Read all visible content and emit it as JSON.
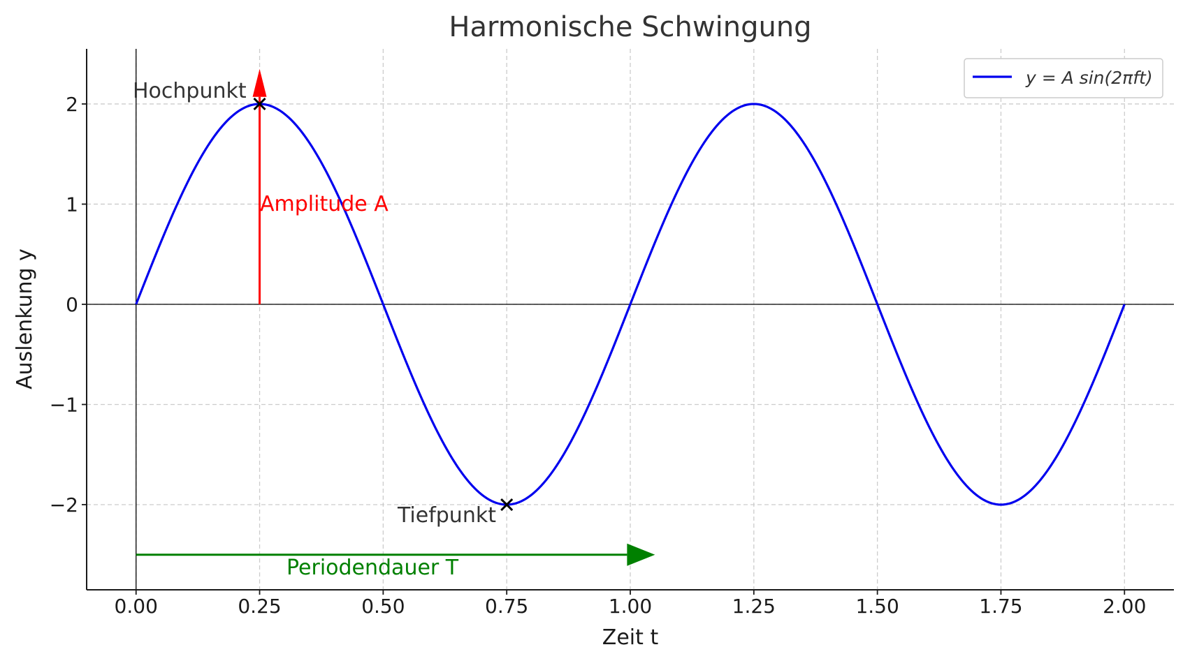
{
  "chart_data": {
    "type": "line",
    "title": "Harmonische Schwingung",
    "xlabel": "Zeit t",
    "ylabel": "Auslenkung y",
    "xlim": [
      -0.1,
      2.1
    ],
    "ylim": [
      -2.85,
      2.55
    ],
    "xticks": [
      0.0,
      0.25,
      0.5,
      0.75,
      1.0,
      1.25,
      1.5,
      1.75,
      2.0
    ],
    "xtick_labels": [
      "0.00",
      "0.25",
      "0.50",
      "0.75",
      "1.00",
      "1.25",
      "1.50",
      "1.75",
      "2.00"
    ],
    "yticks": [
      -2,
      -1,
      0,
      1,
      2
    ],
    "ytick_labels": [
      "−2",
      "−1",
      "0",
      "1",
      "2"
    ],
    "grid": true,
    "legend_position": "top-right",
    "series": [
      {
        "name": "y = A sin(2πft)",
        "color": "#0000ee",
        "amplitude": 2,
        "frequency": 1,
        "t_range": [
          0,
          2
        ]
      }
    ],
    "markers": [
      {
        "name": "hochpunkt",
        "x": 0.25,
        "y": 2,
        "label": "Hochpunkt"
      },
      {
        "name": "tiefpunkt",
        "x": 0.75,
        "y": -2,
        "label": "Tiefpunkt"
      }
    ],
    "annotations": [
      {
        "name": "amplitude",
        "label": "Amplitude A",
        "color": "#ff0000",
        "x": 0.25,
        "y_from": 0,
        "y_to": 2.35
      },
      {
        "name": "periodendauer",
        "label": "Periodendauer T",
        "color": "#008000",
        "y": -2.5,
        "x_from": 0,
        "x_to": 1.05
      }
    ]
  }
}
